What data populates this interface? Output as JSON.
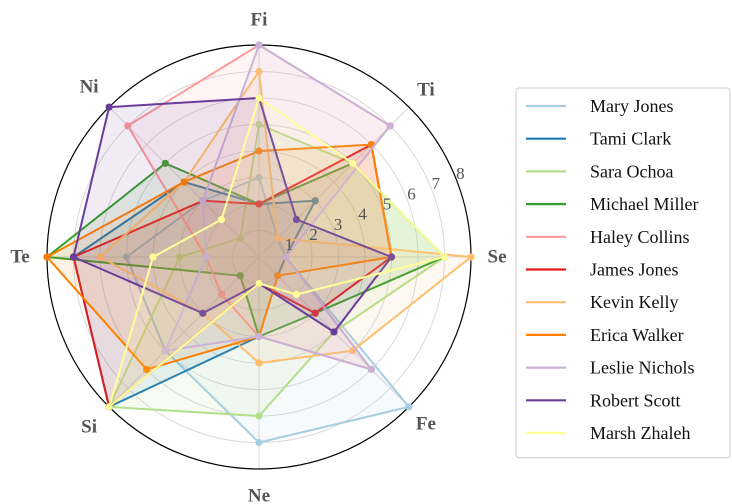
{
  "chart_data": {
    "type": "radar",
    "axes": [
      "Se",
      "Ti",
      "Fi",
      "Ni",
      "Te",
      "Si",
      "Ne",
      "Fe"
    ],
    "rlim": [
      0,
      8
    ],
    "radial_ticks": [
      "1",
      "2",
      "3",
      "4",
      "5",
      "6",
      "7",
      "8"
    ],
    "grid": true,
    "legend_position": "right",
    "series": [
      {
        "name": "Mary Jones",
        "color": "#a6cee3",
        "values": [
          1,
          1,
          3,
          3,
          5,
          5,
          7,
          8
        ]
      },
      {
        "name": "Tami Clark",
        "color": "#1f78b4",
        "values": [
          1,
          3,
          2,
          4,
          7,
          8,
          3,
          1
        ]
      },
      {
        "name": "Sara Ochoa",
        "color": "#b2df8a",
        "values": [
          7,
          5,
          5,
          1,
          3,
          8,
          6,
          4
        ]
      },
      {
        "name": "Michael Miller",
        "color": "#33a02c",
        "values": [
          7,
          5,
          2,
          5,
          8,
          1,
          3,
          3
        ]
      },
      {
        "name": "Haley Collins",
        "color": "#fb9a99",
        "values": [
          1,
          7,
          8,
          7,
          2,
          2,
          3,
          6
        ]
      },
      {
        "name": "James Jones",
        "color": "#e31a1c",
        "values": [
          5,
          6,
          2,
          3,
          7,
          8,
          1,
          3
        ]
      },
      {
        "name": "Kevin Kelly",
        "color": "#fdbf6f",
        "values": [
          8,
          1,
          7,
          4,
          6,
          3,
          4,
          5
        ]
      },
      {
        "name": "Erica Walker",
        "color": "#ff7f00",
        "values": [
          5,
          6,
          4,
          4,
          8,
          6,
          3,
          1
        ]
      },
      {
        "name": "Leslie Nichols",
        "color": "#cab2d6",
        "values": [
          1,
          7,
          8,
          3,
          2,
          5,
          3,
          6
        ]
      },
      {
        "name": "Robert Scott",
        "color": "#6a3d9a",
        "values": [
          5,
          2,
          6,
          8,
          7,
          3,
          1,
          4
        ]
      },
      {
        "name": "Marsh Zhaleh",
        "color": "#ffff99",
        "values": [
          7,
          5,
          6,
          2,
          4,
          8,
          1,
          2
        ]
      }
    ]
  }
}
